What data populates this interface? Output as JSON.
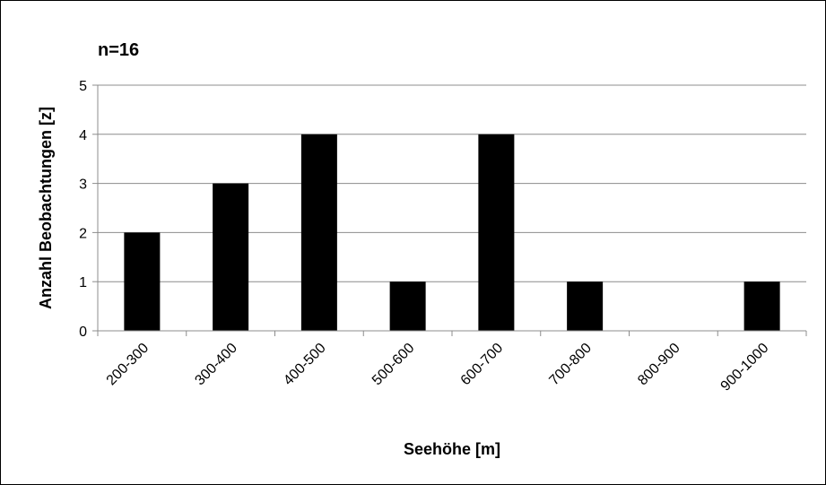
{
  "chart_data": {
    "type": "bar",
    "annotation": "n=16",
    "xlabel": "Seehöhe [m]",
    "ylabel": "Anzahl Beobachtungen [z]",
    "categories": [
      "200-300",
      "300-400",
      "400-500",
      "500-600",
      "600-700",
      "700-800",
      "800-900",
      "900-1000"
    ],
    "values": [
      2,
      3,
      4,
      1,
      4,
      1,
      0,
      1
    ],
    "ylim": [
      0,
      5
    ],
    "yticks": [
      0,
      1,
      2,
      3,
      4,
      5
    ],
    "grid": true,
    "legend": "none",
    "bar_color": "#000000",
    "grid_color": "#8c8c8c"
  }
}
